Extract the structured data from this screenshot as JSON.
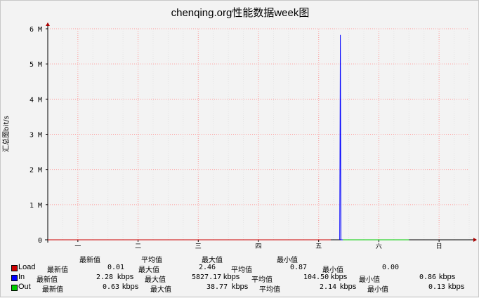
{
  "chart_data": {
    "type": "line",
    "title": "chenqing.org性能数据week图",
    "ylabel": "汇总图bit/s",
    "xlabel": "",
    "x_categories": [
      "一",
      "二",
      "三",
      "四",
      "五",
      "六",
      "日"
    ],
    "y_ticks": [
      "0",
      "1 M",
      "2 M",
      "3 M",
      "4 M",
      "5 M",
      "6 M"
    ],
    "ylim": [
      0,
      6000000
    ],
    "grid": true,
    "series": [
      {
        "name": "Load",
        "color": "#cc0000",
        "points": [
          [
            0,
            0
          ],
          [
            4.7,
            0
          ]
        ]
      },
      {
        "name": "In",
        "color": "#0000ff",
        "points": [
          [
            4.85,
            0
          ],
          [
            4.86,
            5827170
          ],
          [
            4.87,
            0
          ],
          [
            6.0,
            0
          ]
        ]
      },
      {
        "name": "Out",
        "color": "#00cc00",
        "points": [
          [
            4.9,
            0
          ],
          [
            6.0,
            0
          ]
        ]
      }
    ]
  },
  "stat_headers": [
    "最新值",
    "平均值",
    "最大值",
    "最小值"
  ],
  "legend": [
    {
      "name": "Load",
      "color": "#cc0000",
      "items": [
        "最新值",
        "0.01",
        "最大值",
        "2.46",
        "平均值",
        "0.87",
        "最小值",
        "0.00"
      ]
    },
    {
      "name": "In",
      "color": "#0000ff",
      "items": [
        "最新值",
        "2.28",
        "kbps",
        "最大值",
        "5827.17",
        "kbps",
        "平均值",
        "104.50",
        "kbps",
        "最小值",
        "0.86",
        "kbps"
      ]
    },
    {
      "name": "Out",
      "color": "#00cc00",
      "items": [
        "最新值",
        "0.63",
        "kbps",
        "最大值",
        "38.77",
        "kbps",
        "平均值",
        "2.14",
        "kbps",
        "最小值",
        "0.13",
        "kbps"
      ]
    }
  ]
}
